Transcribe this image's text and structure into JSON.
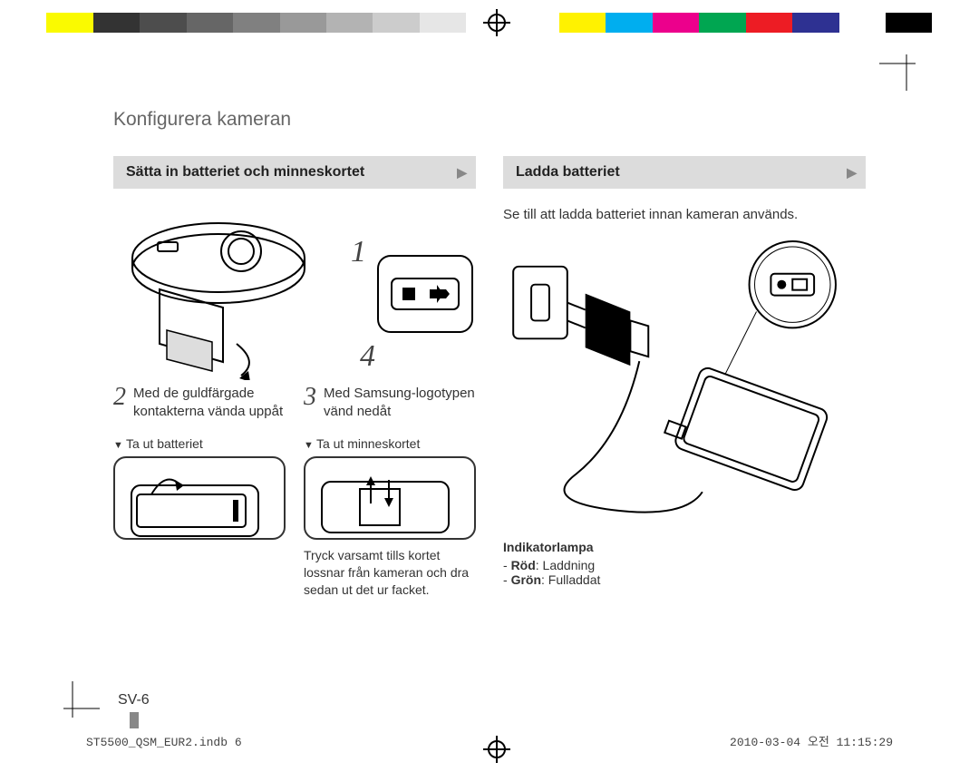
{
  "colorbar": [
    "#ffffff",
    "#fafa00",
    "#333333",
    "#4d4d4d",
    "#666666",
    "#808080",
    "#999999",
    "#b3b3b3",
    "#cccccc",
    "#e6e6e6",
    "#ffffff",
    "#ffffff",
    "#fff200",
    "#00aeef",
    "#ec008c",
    "#00a651",
    "#ed1c24",
    "#2e3192",
    "#ffffff",
    "#000000",
    "#ffffff"
  ],
  "title": "Konfigurera kameran",
  "left": {
    "banner": "Sätta in batteriet och minneskortet",
    "callout1": "1",
    "callout4": "4",
    "step2_num": "2",
    "step2_text": "Med de guldfärgade kontakterna vända uppåt",
    "step3_num": "3",
    "step3_text": "Med Samsung-logotypen vänd nedåt",
    "sub_batt": "Ta ut batteriet",
    "sub_mem": "Ta ut minneskortet",
    "note": "Tryck varsamt tills kortet lossnar från kameran och dra sedan ut det ur facket."
  },
  "right": {
    "banner": "Ladda batteriet",
    "intro": "Se till att ladda batteriet innan kameran används.",
    "ind_label": "Indikatorlampa",
    "ind_red_b": "Röd",
    "ind_red_t": ": Laddning",
    "ind_green_b": "Grön",
    "ind_green_t": ": Fulladdat"
  },
  "page_num": "SV-6",
  "footer_left": "ST5500_QSM_EUR2.indb   6",
  "footer_right": "2010-03-04   오전 11:15:29"
}
